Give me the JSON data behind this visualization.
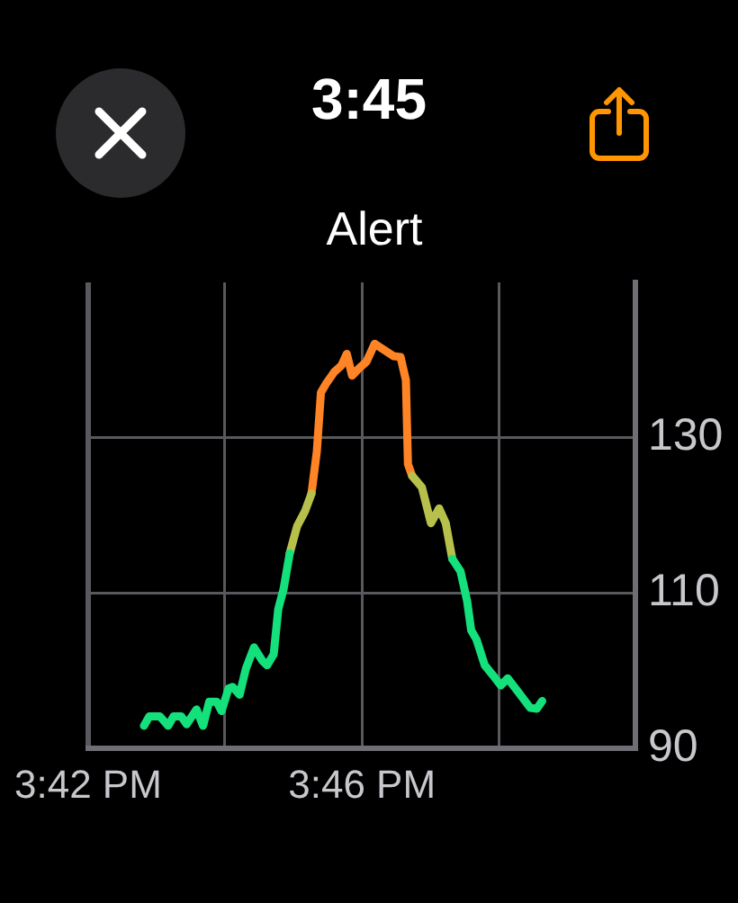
{
  "chart_data": {
    "type": "line",
    "title": "Alert",
    "annotations": [
      "3:45"
    ],
    "x": [
      15.7136,
      15.7149,
      15.7175,
      15.7195,
      15.7208,
      15.7227,
      15.724,
      15.7264,
      15.728,
      15.7295,
      15.7313,
      15.7325,
      15.7342,
      15.7352,
      15.7369,
      15.7384,
      15.7404,
      15.7424,
      15.7436,
      15.7452,
      15.7463,
      15.7476,
      15.7491,
      15.7509,
      15.7528,
      15.7544,
      15.7557,
      15.7567,
      15.758,
      15.76,
      15.7617,
      15.763,
      15.7643,
      15.7659,
      15.7678,
      15.7698,
      15.7724,
      15.7744,
      15.7761,
      15.7774,
      15.7779,
      15.7789,
      15.7813,
      15.7835,
      15.7855,
      15.7871,
      15.7887,
      15.7907,
      15.7923,
      15.7933,
      15.7946,
      15.7966,
      15.7986,
      15.8005,
      15.8022,
      15.8044,
      15.8077,
      15.8093,
      15.8106
    ],
    "xlim": [
      15.7,
      15.8333
    ],
    "xticks": [
      {
        "value": 15.7,
        "label": "3:42 PM"
      },
      {
        "value": 15.7333,
        "label": null
      },
      {
        "value": 15.7667,
        "label": "3:46 PM"
      },
      {
        "value": 15.8,
        "label": null
      },
      {
        "value": 15.8333,
        "label": null
      }
    ],
    "ylim": [
      90,
      150
    ],
    "yticks": [
      90,
      110,
      130
    ],
    "grid": true,
    "legend": false,
    "marker": "none",
    "series": [
      {
        "color": "#14e07c",
        "values": [
          92.9,
          94.1,
          94.1,
          92.9,
          94.1,
          94.1,
          93.1,
          95.0,
          92.9,
          96.0,
          96.0,
          94.8,
          97.7,
          97.9,
          96.9,
          100.2,
          103.0,
          101.3,
          100.7,
          102.1,
          107.9,
          110.5,
          115.1,
          null,
          null,
          null,
          null,
          null,
          null,
          null,
          null,
          null,
          null,
          null,
          null,
          null,
          null,
          null,
          null,
          null,
          null,
          null,
          null,
          null,
          null,
          null,
          114.4,
          112.8,
          109.0,
          105.2,
          104.0,
          100.7,
          99.4,
          98.1,
          99.0,
          97.5,
          95.2,
          95.1,
          96.1
        ]
      },
      {
        "color": "#b8c04c",
        "values": [
          null,
          null,
          null,
          null,
          null,
          null,
          null,
          null,
          null,
          null,
          null,
          null,
          null,
          null,
          null,
          null,
          null,
          null,
          null,
          null,
          null,
          null,
          115.1,
          118.6,
          120.5,
          122.8,
          null,
          null,
          null,
          null,
          null,
          null,
          null,
          null,
          null,
          null,
          null,
          null,
          null,
          null,
          null,
          125.1,
          123.6,
          119.0,
          120.9,
          119.0,
          114.4,
          null,
          null,
          null,
          null,
          null,
          null,
          null,
          null,
          null,
          null,
          null,
          null
        ]
      },
      {
        "color": "#ff8426",
        "values": [
          null,
          null,
          null,
          null,
          null,
          null,
          null,
          null,
          null,
          null,
          null,
          null,
          null,
          null,
          null,
          null,
          null,
          null,
          null,
          null,
          null,
          null,
          null,
          null,
          null,
          122.8,
          128.2,
          135.8,
          137.0,
          138.5,
          139.3,
          140.8,
          138.0,
          138.9,
          139.8,
          142.1,
          141.2,
          140.5,
          140.4,
          137.4,
          126.6,
          125.1,
          null,
          null,
          null,
          null,
          null,
          null,
          null,
          null,
          null,
          null,
          null,
          null,
          null,
          null,
          null,
          null,
          null
        ]
      }
    ]
  }
}
